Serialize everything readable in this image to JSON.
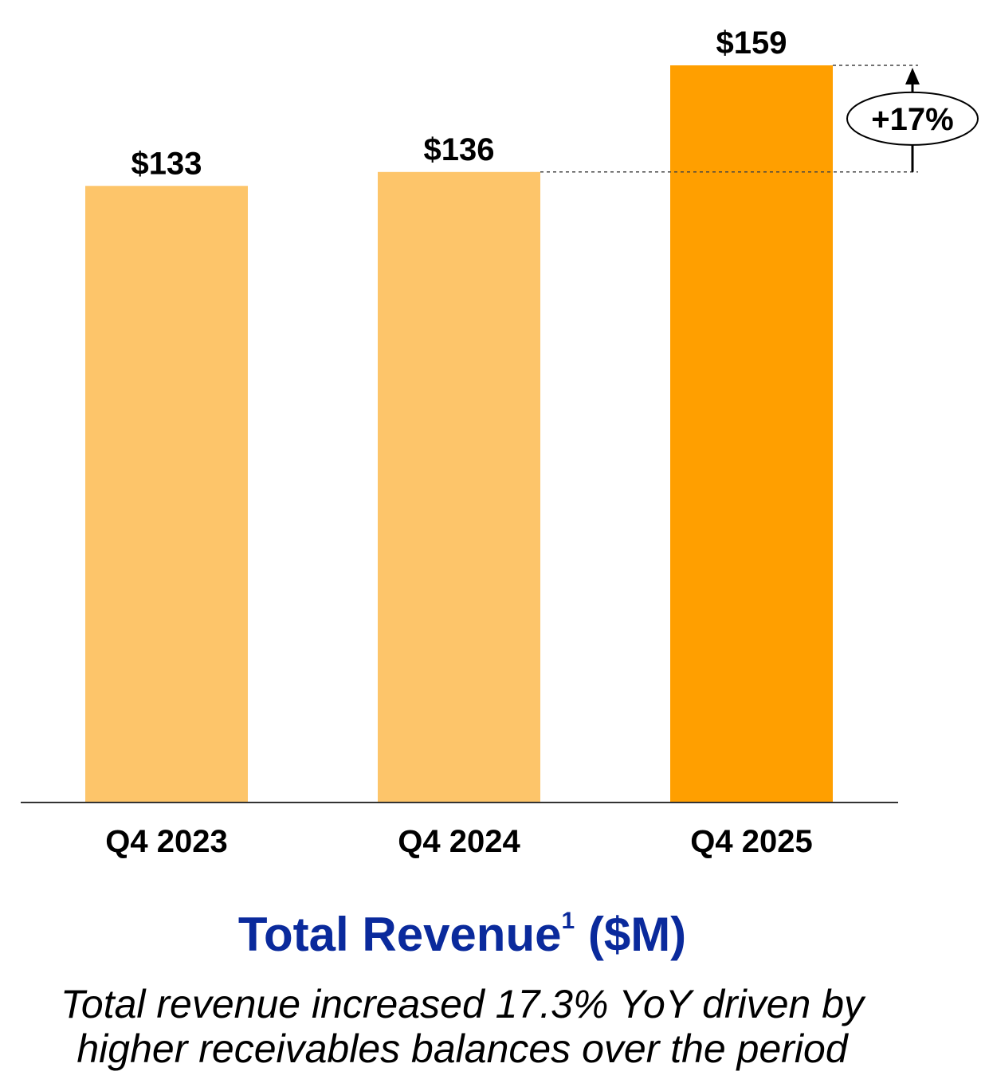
{
  "chart_data": {
    "type": "bar",
    "categories": [
      "Q4 2023",
      "Q4 2024",
      "Q4 2025"
    ],
    "values": [
      133,
      136,
      159
    ],
    "value_labels": [
      "$133",
      "$136",
      "$159"
    ],
    "bar_colors": [
      "#fdc56a",
      "#fdc56a",
      "#ff9f00"
    ],
    "ylim": [
      0,
      159
    ],
    "grid": false,
    "annotation": {
      "label": "+17%",
      "from": 136,
      "to": 159
    }
  },
  "title": {
    "text": "Total Revenue",
    "superscript": "1",
    "unit": " ($M)"
  },
  "subtitle": {
    "line1": "Total revenue increased 17.3% YoY driven by",
    "line2": "higher receivables balances over the period"
  },
  "colors": {
    "title": "#0a2a9c",
    "axis": "#333333"
  }
}
